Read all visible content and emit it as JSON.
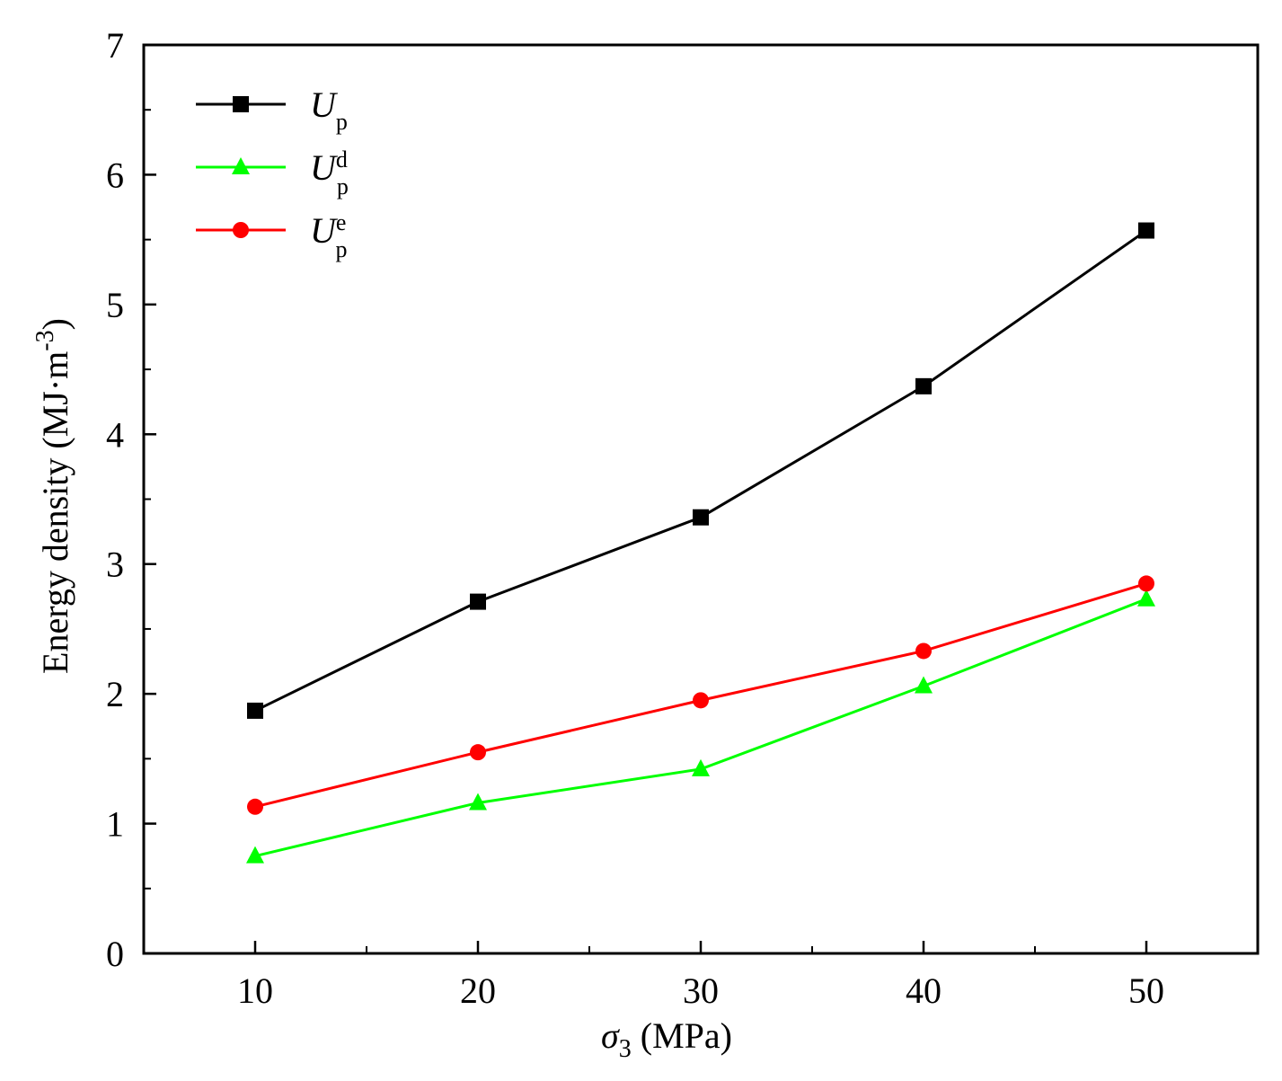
{
  "chart_data": {
    "type": "line",
    "xlabel": {
      "symbol": "σ",
      "sub": "3",
      "unit": " (MPa)"
    },
    "ylabel": {
      "text": "Energy density (MJ·m",
      "sup": "-3",
      "close": ")"
    },
    "x_ticks": [
      "10",
      "20",
      "30",
      "40",
      "50"
    ],
    "y_ticks": [
      "0",
      "1",
      "2",
      "3",
      "4",
      "5",
      "6",
      "7"
    ],
    "xlim": [
      5,
      55
    ],
    "ylim": [
      0,
      7
    ],
    "x": [
      10,
      20,
      30,
      40,
      50
    ],
    "legend_position": "top-left",
    "series": [
      {
        "name": "Up",
        "base": "U",
        "sub": "p",
        "sup": "",
        "color": "#000000",
        "marker": "square",
        "values": [
          1.87,
          2.71,
          3.36,
          4.37,
          5.57
        ]
      },
      {
        "name": "Udp",
        "base": "U",
        "sub": "p",
        "sup": "d",
        "color": "#00ff00",
        "marker": "triangle",
        "values": [
          0.75,
          1.16,
          1.42,
          2.06,
          2.73
        ]
      },
      {
        "name": "Uep",
        "base": "U",
        "sub": "p",
        "sup": "e",
        "color": "#ff0000",
        "marker": "circle",
        "values": [
          1.13,
          1.55,
          1.95,
          2.33,
          2.85
        ]
      }
    ]
  }
}
